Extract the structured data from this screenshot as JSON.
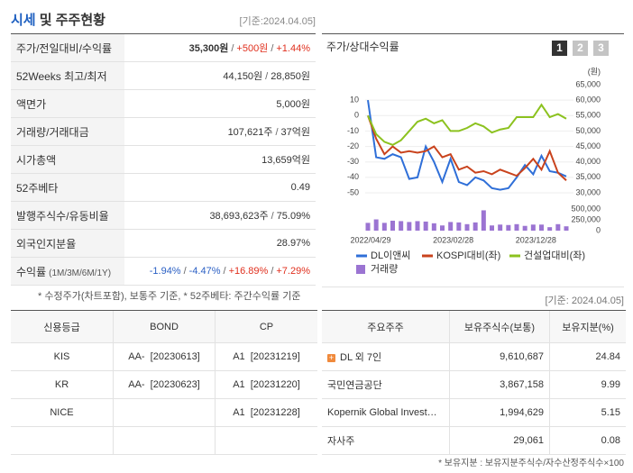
{
  "header": {
    "title_highlight": "시세",
    "title_rest": "및 주주현황",
    "date": "[기준:2024.04.05]"
  },
  "summary": {
    "separator": "/",
    "rows": [
      {
        "label": "주가/전일대비/수익률",
        "values": [
          "35,300원",
          "+500원",
          "+1.44%"
        ]
      },
      {
        "label": "52Weeks 최고/최저",
        "values": [
          "44,150원",
          "28,850원"
        ]
      },
      {
        "label": "액면가",
        "values": [
          "5,000원"
        ]
      },
      {
        "label": "거래량/거래대금",
        "values": [
          "107,621주",
          "37억원"
        ]
      },
      {
        "label": "시가총액",
        "values": [
          "13,659억원"
        ]
      },
      {
        "label": "52주베타",
        "values": [
          "0.49"
        ]
      },
      {
        "label": "발행주식수/유동비율",
        "values": [
          "38,693,623주",
          "75.09%"
        ]
      },
      {
        "label": "외국인지분율",
        "values": [
          "28.97%"
        ]
      },
      {
        "label": "수익률",
        "label_note": "(1M/3M/6M/1Y)",
        "values": [
          "-1.94%",
          "-4.47%",
          "+16.89%",
          "+7.29%"
        ]
      }
    ],
    "note": "* 수정주가(차트포함), 보통주 기준, * 52주베타: 주간수익률 기준"
  },
  "chart_controls": [
    "1",
    "2",
    "3"
  ],
  "chart_data": {
    "type": "line",
    "title": "주가/상대수익률",
    "y2label": "(원)",
    "categories": [
      "2022/04/29",
      null,
      null,
      null,
      null,
      null,
      null,
      null,
      null,
      null,
      "2023/02/28",
      null,
      null,
      null,
      null,
      null,
      null,
      null,
      null,
      null,
      "2023/12/28",
      null,
      null,
      null,
      null
    ],
    "ylim": [
      -50,
      20
    ],
    "yticks": [
      10,
      0,
      -10,
      -20,
      -30,
      -40,
      -50
    ],
    "y2lim": [
      30000,
      65000
    ],
    "y2ticks": [
      {
        "value": 65000,
        "label": "65,000"
      },
      {
        "value": 60000,
        "label": "60,000"
      },
      {
        "value": 55000,
        "label": "55,000"
      },
      {
        "value": 50000,
        "label": "50,000"
      },
      {
        "value": 45000,
        "label": "45,000"
      },
      {
        "value": 40000,
        "label": "40,000"
      },
      {
        "value": 35000,
        "label": "35,000"
      },
      {
        "value": 30000,
        "label": "30,000"
      }
    ],
    "y3lim": [
      0,
      500000
    ],
    "y3ticks": [
      {
        "value": 500000,
        "label": "500,000"
      },
      {
        "value": 250000,
        "label": "250,000"
      },
      0
    ],
    "grid": true,
    "series": [
      {
        "name": "DL이앤씨",
        "color": "#2f6fd8",
        "axis": "y2",
        "values": [
          60000,
          41500,
          41000,
          42500,
          41500,
          34500,
          35000,
          45000,
          40000,
          33500,
          41000,
          33500,
          32500,
          35000,
          34000,
          31500,
          31000,
          31500,
          35000,
          39000,
          36000,
          42000,
          37000,
          36500,
          35300
        ]
      },
      {
        "name": "KOSPI대비(좌)",
        "color": "#c9431d",
        "values": [
          0,
          -15,
          -25,
          -20,
          -24,
          -23,
          -24,
          -23,
          -20,
          -27,
          -25,
          -35,
          -33,
          -37,
          -36,
          -38,
          -35,
          -37,
          -39,
          -34,
          -28,
          -35,
          -23,
          -37,
          -42
        ]
      },
      {
        "name": "건설업대비(좌)",
        "color": "#8cc21f",
        "values": [
          0,
          -12,
          -17,
          -19,
          -16,
          -10,
          -4,
          -2,
          -5,
          -3,
          -10,
          -10,
          -8,
          -5,
          -7,
          -11,
          -9,
          -8,
          -1,
          -1,
          -1,
          7,
          -1,
          1,
          -2
        ]
      },
      {
        "name": "거래량",
        "color": "#9b74d2",
        "type": "bar",
        "axis": "y3",
        "values": [
          180000,
          260000,
          180000,
          230000,
          220000,
          200000,
          220000,
          210000,
          170000,
          120000,
          200000,
          190000,
          150000,
          190000,
          470000,
          120000,
          140000,
          130000,
          150000,
          110000,
          140000,
          140000,
          80000,
          150000,
          100000
        ]
      }
    ]
  },
  "credit": {
    "header": [
      "신용등급",
      "BOND",
      "CP"
    ],
    "rows": [
      [
        "KIS",
        "AA-  [20230613]",
        "A1  [20231219]"
      ],
      [
        "KR",
        "AA-  [20230623]",
        "A1  [20231220]"
      ],
      [
        "NICE",
        null,
        "A1  [20231228]"
      ]
    ]
  },
  "holders": {
    "date": "[기준: 2024.04.05]",
    "header": [
      "주요주주",
      "보유주식수(보통)",
      "보유지분(%)"
    ],
    "rows": [
      [
        "DL 외 7인",
        "9,610,687",
        "24.84"
      ],
      [
        "국민연금공단",
        "3,867,158",
        "9.99"
      ],
      [
        "Kopernik Global Invest…",
        "1,994,629",
        "5.15"
      ],
      [
        "자사주",
        "29,061",
        "0.08"
      ]
    ],
    "note": "* 보유지분 : 보유지분주식수/자수산정주식수×100"
  }
}
